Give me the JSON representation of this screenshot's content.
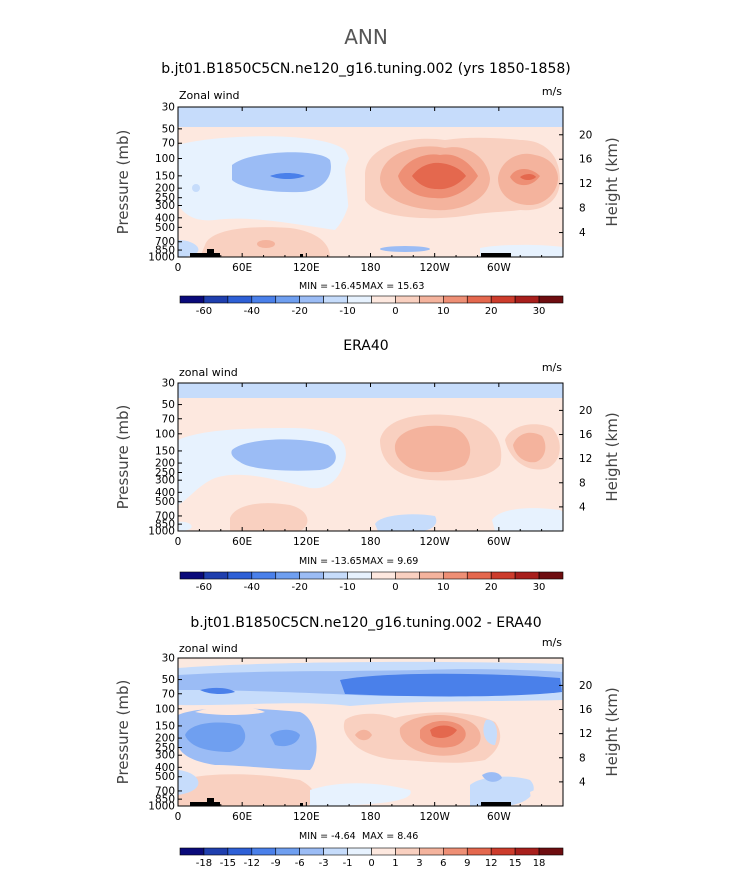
{
  "main_title": "ANN",
  "colors": {
    "levels": [
      "#0a0a7a",
      "#1f3fae",
      "#2e60d6",
      "#4a80ea",
      "#6f9ff0",
      "#9bbcf5",
      "#c6dcfb",
      "#e7f2fe",
      "#fde8df",
      "#f9d0c0",
      "#f4b39d",
      "#ee8f75",
      "#e4684e",
      "#cd3c2c",
      "#a81f1c",
      "#6e0d10"
    ],
    "zero_band": "#f9e5d9",
    "land": "#000000"
  },
  "icons": {
    "land_mask": "topography-bars"
  },
  "chart_data": [
    {
      "type": "heatmap",
      "title": "b.jt01.B1850C5CN.ne120_g16.tuning.002 (yrs 1850-1858)",
      "left_label": "Zonal wind",
      "right_label": "m/s",
      "ylabel": "Pressure (mb)",
      "y2label": "Height (km)",
      "x_ticks": [
        "0",
        "60E",
        "120E",
        "180",
        "120W",
        "60W"
      ],
      "y_ticks": [
        "30",
        "50",
        "70",
        "100",
        "150",
        "200",
        "250",
        "300",
        "400",
        "500",
        "700",
        "850",
        "1000"
      ],
      "y2_ticks": [
        "20",
        "16",
        "12",
        "8",
        "4"
      ],
      "xlim": [
        0,
        360
      ],
      "ylim": [
        1000,
        30
      ],
      "min_label": "MIN = -16.45",
      "max_label": "MAX = 15.63",
      "colorbar_labels": [
        "-60",
        "-40",
        "-20",
        "-10",
        "0",
        "10",
        "20",
        "30"
      ],
      "features": [
        {
          "lon": 80,
          "p": 150,
          "value": -10
        },
        {
          "lon": 222,
          "p": 150,
          "value": 15.6
        },
        {
          "lon": 300,
          "p": 150,
          "value": 13
        },
        {
          "lon": 50,
          "p": 850,
          "value": 5
        }
      ]
    },
    {
      "type": "heatmap",
      "title": "ERA40",
      "left_label": "zonal wind",
      "right_label": "m/s",
      "ylabel": "Pressure (mb)",
      "y2label": "Height (km)",
      "x_ticks": [
        "0",
        "60E",
        "120E",
        "180",
        "120W",
        "60W"
      ],
      "y_ticks": [
        "30",
        "50",
        "70",
        "100",
        "150",
        "200",
        "250",
        "300",
        "400",
        "500",
        "700",
        "850",
        "1000"
      ],
      "y2_ticks": [
        "20",
        "16",
        "12",
        "8",
        "4"
      ],
      "xlim": [
        0,
        360
      ],
      "ylim": [
        1000,
        30
      ],
      "min_label": "MIN = -13.65",
      "max_label": "MAX =   9.69",
      "colorbar_labels": [
        "-60",
        "-40",
        "-20",
        "-10",
        "0",
        "10",
        "20",
        "30"
      ],
      "features": [
        {
          "lon": 100,
          "p": 150,
          "value": -13.65
        },
        {
          "lon": 225,
          "p": 150,
          "value": 9.69
        },
        {
          "lon": 320,
          "p": 150,
          "value": 8
        }
      ]
    },
    {
      "type": "heatmap",
      "title": "b.jt01.B1850C5CN.ne120_g16.tuning.002 - ERA40",
      "left_label": "zonal wind",
      "right_label": "m/s",
      "ylabel": "Pressure (mb)",
      "y2label": "Height (km)",
      "x_ticks": [
        "0",
        "60E",
        "120E",
        "180",
        "120W",
        "60W"
      ],
      "y_ticks": [
        "30",
        "50",
        "70",
        "100",
        "150",
        "200",
        "250",
        "300",
        "400",
        "500",
        "700",
        "850",
        "1000"
      ],
      "y2_ticks": [
        "20",
        "16",
        "12",
        "8",
        "4"
      ],
      "xlim": [
        0,
        360
      ],
      "ylim": [
        1000,
        30
      ],
      "min_label": "MIN =  -4.64",
      "max_label": "MAX =   8.46",
      "colorbar_labels": [
        "-18",
        "-15",
        "-12",
        "-9",
        "-6",
        "-3",
        "-1",
        "0",
        "1",
        "3",
        "6",
        "9",
        "12",
        "15",
        "18"
      ],
      "features": [
        {
          "lon": 240,
          "p": 50,
          "value": -4.64
        },
        {
          "lon": 240,
          "p": 150,
          "value": 8.46
        },
        {
          "lon": 40,
          "p": 200,
          "value": -4
        }
      ]
    }
  ]
}
